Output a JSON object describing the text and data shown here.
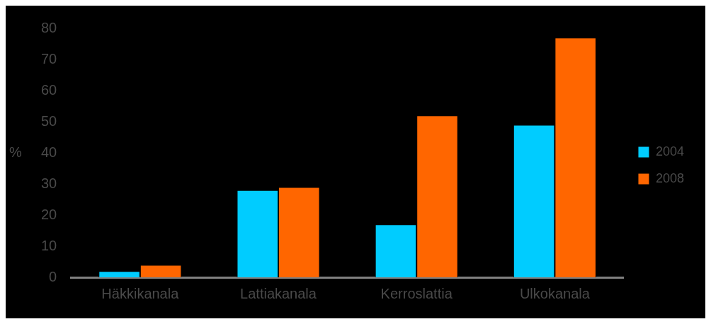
{
  "chart_data": {
    "type": "bar",
    "ylabel": "%",
    "categories": [
      "Häkkikanala",
      "Lattiakanala",
      "Kerroslattia",
      "Ulkokanala"
    ],
    "series": [
      {
        "name": "2004",
        "color": "#00ccff",
        "values": [
          2,
          28,
          17,
          49
        ]
      },
      {
        "name": "2008",
        "color": "#ff6600",
        "values": [
          4,
          29,
          52,
          77
        ]
      }
    ],
    "ylim": [
      0,
      80
    ],
    "yticks": [
      0,
      10,
      20,
      30,
      40,
      50,
      60,
      70,
      80
    ],
    "grid": false,
    "legend": "right"
  }
}
